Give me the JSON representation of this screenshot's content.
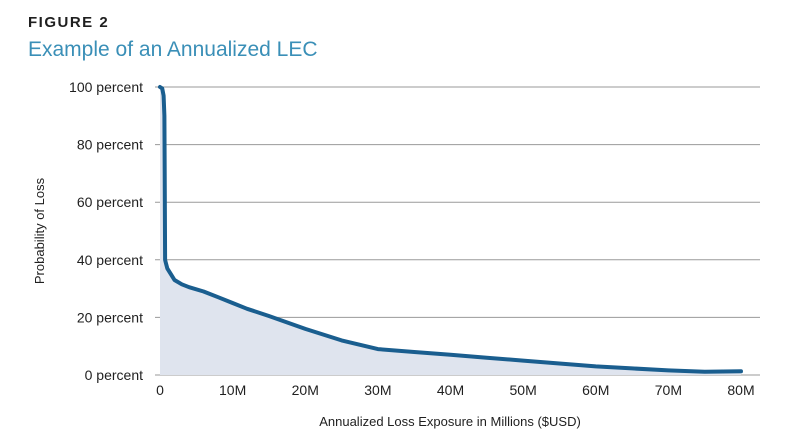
{
  "header": {
    "figure_label": "FIGURE 2",
    "title": "Example of an Annualized LEC"
  },
  "colors": {
    "curve": "#1a5e8f",
    "fill": "#dfe4ee",
    "grid": "#9a9a9a",
    "title": "#3a8fb7",
    "text": "#1f1f1f"
  },
  "chart_data": {
    "type": "area",
    "title": "Example of an Annualized LEC",
    "xlabel": "Annualized Loss Exposure in Millions ($USD)",
    "ylabel": "Probability of Loss",
    "xlim": [
      0,
      80
    ],
    "ylim": [
      0,
      100
    ],
    "x_ticks": [
      0,
      10,
      20,
      30,
      40,
      50,
      60,
      70,
      80
    ],
    "x_tick_labels": [
      "0",
      "10M",
      "20M",
      "30M",
      "40M",
      "50M",
      "60M",
      "70M",
      "80M"
    ],
    "y_ticks": [
      0,
      20,
      40,
      60,
      80,
      100
    ],
    "y_tick_labels": [
      "0 percent",
      "20 percent",
      "40 percent",
      "60 percent",
      "80 percent",
      "100 percent"
    ],
    "grid": "horizontal",
    "legend": "none",
    "series": [
      {
        "x": [
          0,
          0.3,
          0.5,
          0.6,
          0.65,
          0.7,
          0.8,
          1,
          1.5,
          2,
          3,
          4,
          6,
          8,
          10,
          12,
          15,
          20,
          25,
          30,
          35,
          40,
          45,
          50,
          55,
          60,
          65,
          70,
          75,
          80
        ],
        "values": [
          100,
          99.5,
          97,
          90,
          70,
          40,
          39,
          37,
          35,
          33,
          31.5,
          30.5,
          29,
          27,
          25,
          23,
          20.5,
          16,
          12,
          9,
          8,
          7,
          6,
          5,
          4,
          3,
          2.3,
          1.6,
          1.1,
          1.3
        ]
      }
    ]
  }
}
